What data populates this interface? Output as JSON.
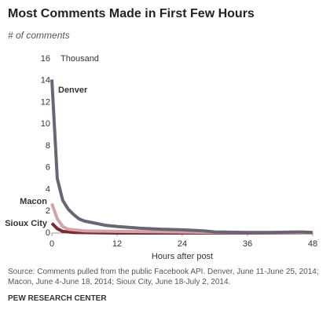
{
  "chart_data": {
    "type": "line",
    "title": "Most Comments Made in First Few Hours",
    "subtitle": "# of comments",
    "y_unit": "Thousand",
    "x_label": "Hours after post",
    "xlim": [
      0,
      48
    ],
    "xticks": [
      0,
      12,
      24,
      36,
      48
    ],
    "ylim": [
      0,
      16
    ],
    "yticks": [
      0,
      2,
      4,
      6,
      8,
      10,
      12,
      14,
      16
    ],
    "grid": false,
    "series": [
      {
        "name": "Denver",
        "color": "#6b6472",
        "x": [
          0,
          1,
          2,
          3,
          4,
          5,
          6,
          8,
          10,
          12,
          16,
          20,
          24,
          28,
          30,
          36,
          40,
          46,
          48
        ],
        "values": [
          14.1,
          5.0,
          3.0,
          2.2,
          1.7,
          1.3,
          1.1,
          0.9,
          0.7,
          0.6,
          0.45,
          0.35,
          0.3,
          0.2,
          0.1,
          0.05,
          0.05,
          0.1,
          0.05
        ]
      },
      {
        "name": "Macon",
        "color": "#d4a3a5",
        "x": [
          0,
          1,
          2,
          3,
          4,
          6,
          12,
          24,
          30,
          48
        ],
        "values": [
          2.7,
          1.3,
          0.6,
          0.35,
          0.3,
          0.2,
          0.15,
          0.1,
          0.05,
          0
        ]
      },
      {
        "name": "Sioux City",
        "color": "#7a2b35",
        "x": [
          0,
          1,
          2,
          4,
          12,
          48
        ],
        "values": [
          0.9,
          0.4,
          0.15,
          0.05,
          0,
          0
        ]
      }
    ],
    "source": "Source: Comments pulled from the public Facebook API. Denver, June 11-June 25, 2014; Macon, June 4-June 18, 2014; Sioux City, June 18-July 2, 2014.",
    "credit": "PEW RESEARCH CENTER"
  }
}
